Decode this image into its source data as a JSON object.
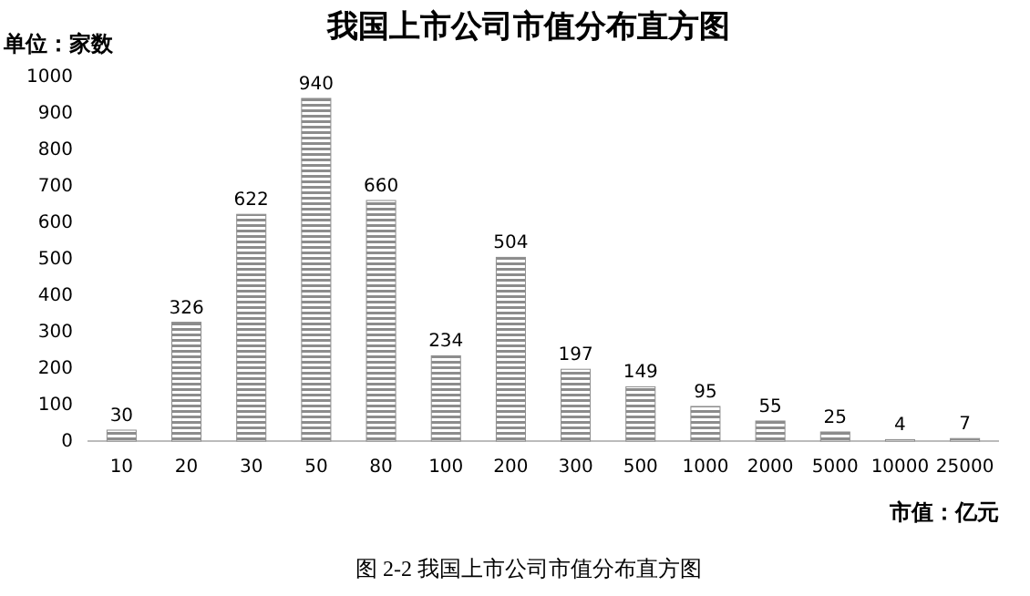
{
  "chart_data": {
    "type": "bar",
    "title": "我国上市公司市值分布直方图",
    "ylabel": "单位：家数",
    "xlabel": "市值：亿元",
    "categories": [
      "10",
      "20",
      "30",
      "50",
      "80",
      "100",
      "200",
      "300",
      "500",
      "1000",
      "2000",
      "5000",
      "10000",
      "25000"
    ],
    "values": [
      30,
      326,
      622,
      940,
      660,
      234,
      504,
      197,
      149,
      95,
      55,
      25,
      4,
      7
    ],
    "color": "#8c8c8c",
    "ylim": [
      0,
      1000
    ],
    "yticks": [
      0,
      100,
      200,
      300,
      400,
      500,
      600,
      700,
      800,
      900,
      1000
    ],
    "grid": false,
    "data_labels": true,
    "annotations": [
      "图 2-2 我国上市公司市值分布直方图"
    ]
  }
}
